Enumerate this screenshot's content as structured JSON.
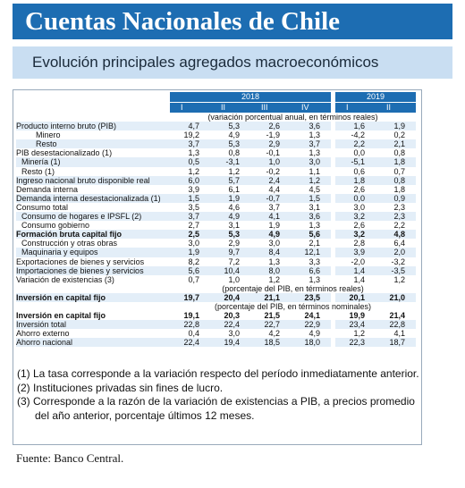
{
  "header": {
    "title": "Cuentas Nacionales de Chile",
    "subtitle": "Evolución principales agregados macroeconómicos"
  },
  "table": {
    "years": [
      {
        "label": "2018",
        "quarters": [
          "I",
          "II",
          "III",
          "IV"
        ]
      },
      {
        "label": "2019",
        "quarters": [
          "I",
          "II"
        ]
      }
    ],
    "rows": [
      {
        "note": "(variación porcentual anual, en términos reales)"
      },
      {
        "label": "Producto interno bruto (PIB)",
        "level": 0,
        "bold": false,
        "values": [
          "4,7",
          "5,3",
          "2,6",
          "3,6",
          "1,6",
          "1,9"
        ]
      },
      {
        "label": "Minero",
        "level": 2,
        "bold": false,
        "values": [
          "19,2",
          "4,9",
          "-1,9",
          "1,3",
          "-4,2",
          "0,2"
        ]
      },
      {
        "label": "Resto",
        "level": 2,
        "bold": false,
        "values": [
          "3,7",
          "5,3",
          "2,9",
          "3,7",
          "2,2",
          "2,1"
        ]
      },
      {
        "label": "PIB desestacionalizado (1)",
        "level": 0,
        "bold": false,
        "values": [
          "1,3",
          "0,8",
          "-0,1",
          "1,3",
          "0,0",
          "0,8"
        ]
      },
      {
        "label": "Minería (1)",
        "level": 1,
        "bold": false,
        "values": [
          "0,5",
          "-3,1",
          "1,0",
          "3,0",
          "-5,1",
          "1,8"
        ]
      },
      {
        "label": "Resto (1)",
        "level": 1,
        "bold": false,
        "values": [
          "1,2",
          "1,2",
          "-0,2",
          "1,1",
          "0,6",
          "0,7"
        ]
      },
      {
        "label": "Ingreso nacional bruto disponible real",
        "level": 0,
        "bold": false,
        "values": [
          "6,0",
          "5,7",
          "2,4",
          "1,2",
          "1,8",
          "0,8"
        ]
      },
      {
        "label": "Demanda interna",
        "level": 0,
        "bold": false,
        "values": [
          "3,9",
          "6,1",
          "4,4",
          "4,5",
          "2,6",
          "1,8"
        ]
      },
      {
        "label": "Demanda interna desestacionalizada (1)",
        "level": 0,
        "bold": false,
        "values": [
          "1,5",
          "1,9",
          "-0,7",
          "1,5",
          "0,0",
          "0,9"
        ]
      },
      {
        "label": "Consumo total",
        "level": 0,
        "bold": false,
        "values": [
          "3,5",
          "4,6",
          "3,7",
          "3,1",
          "3,0",
          "2,3"
        ]
      },
      {
        "label": "Consumo de hogares e IPSFL (2)",
        "level": 1,
        "bold": false,
        "values": [
          "3,7",
          "4,9",
          "4,1",
          "3,6",
          "3,2",
          "2,3"
        ]
      },
      {
        "label": "Consumo gobierno",
        "level": 1,
        "bold": false,
        "values": [
          "2,7",
          "3,1",
          "1,9",
          "1,3",
          "2,6",
          "2,2"
        ]
      },
      {
        "label": "Formación bruta capital fijo",
        "level": 0,
        "bold": true,
        "values": [
          "2,5",
          "5,3",
          "4,9",
          "5,6",
          "3,2",
          "4,8"
        ]
      },
      {
        "label": "Construcción y otras obras",
        "level": 1,
        "bold": false,
        "values": [
          "3,0",
          "2,9",
          "3,0",
          "2,1",
          "2,8",
          "6,4"
        ]
      },
      {
        "label": "Maquinaria y equipos",
        "level": 1,
        "bold": false,
        "values": [
          "1,9",
          "9,7",
          "8,4",
          "12,1",
          "3,9",
          "2,0"
        ]
      },
      {
        "label": "Exportaciones de bienes y servicios",
        "level": 0,
        "bold": false,
        "values": [
          "8,2",
          "7,2",
          "1,3",
          "3,3",
          "-2,0",
          "-3,2"
        ]
      },
      {
        "label": "Importaciones de bienes y servicios",
        "level": 0,
        "bold": false,
        "values": [
          "5,6",
          "10,4",
          "8,0",
          "6,6",
          "1,4",
          "-3,5"
        ]
      },
      {
        "label": "Variación de existencias (3)",
        "level": 0,
        "bold": false,
        "values": [
          "0,7",
          "1,0",
          "1,2",
          "1,3",
          "1,4",
          "1,2"
        ]
      },
      {
        "note": "(porcentaje del PIB, en términos reales)"
      },
      {
        "label": "Inversión en capital fijo",
        "level": 0,
        "bold": true,
        "values": [
          "19,7",
          "20,4",
          "21,1",
          "23,5",
          "20,1",
          "21,0"
        ]
      },
      {
        "note": "(porcentaje del PIB, en términos nominales)"
      },
      {
        "label": "Inversión en capital fijo",
        "level": 0,
        "bold": true,
        "values": [
          "19,1",
          "20,3",
          "21,5",
          "24,1",
          "19,9",
          "21,4"
        ]
      },
      {
        "label": "Inversión total",
        "level": 0,
        "bold": false,
        "values": [
          "22,8",
          "22,4",
          "22,7",
          "22,9",
          "23,4",
          "22,8"
        ]
      },
      {
        "label": "Ahorro externo",
        "level": 0,
        "bold": false,
        "values": [
          "0,4",
          "3,0",
          "4,2",
          "4,9",
          "1,2",
          "4,1"
        ]
      },
      {
        "label": "Ahorro nacional",
        "level": 0,
        "bold": false,
        "values": [
          "22,4",
          "19,4",
          "18,5",
          "18,0",
          "22,3",
          "18,7"
        ]
      }
    ]
  },
  "footnotes": [
    "(1) La tasa corresponde a la variación respecto del período inmediatamente anterior.",
    "(2) Instituciones privadas sin fines de lucro.",
    "(3) Corresponde a la razón de la variación de existencias a PIB, a precios promedio del año anterior, porcentaje últimos 12 meses."
  ],
  "source": "Fuente: Banco Central."
}
